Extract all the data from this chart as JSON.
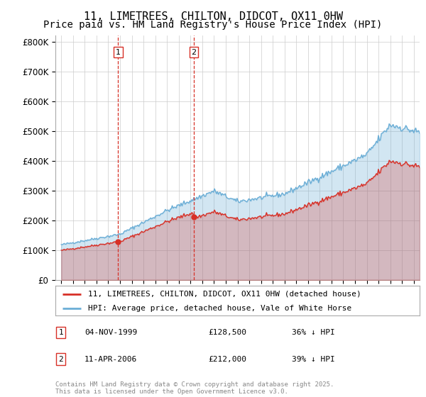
{
  "title": "11, LIMETREES, CHILTON, DIDCOT, OX11 0HW",
  "subtitle": "Price paid vs. HM Land Registry's House Price Index (HPI)",
  "legend_line1": "11, LIMETREES, CHILTON, DIDCOT, OX11 0HW (detached house)",
  "legend_line2": "HPI: Average price, detached house, Vale of White Horse",
  "table_rows": [
    {
      "num": "1",
      "date": "04-NOV-1999",
      "price": "£128,500",
      "change": "36% ↓ HPI"
    },
    {
      "num": "2",
      "date": "11-APR-2006",
      "price": "£212,000",
      "change": "39% ↓ HPI"
    }
  ],
  "footer": "Contains HM Land Registry data © Crown copyright and database right 2025.\nThis data is licensed under the Open Government Licence v3.0.",
  "sale1_date": 1999.84,
  "sale1_price": 128500,
  "sale2_date": 2006.28,
  "sale2_price": 212000,
  "hpi_color": "#6baed6",
  "hpi_fill_alpha": 0.3,
  "price_color": "#d73027",
  "price_fill_alpha": 0.25,
  "dashed_color": "#d73027",
  "background_color": "#ffffff",
  "plot_bg_color": "#ffffff",
  "grid_color": "#cccccc",
  "ylim": [
    0,
    820000
  ],
  "yticks": [
    0,
    100000,
    200000,
    300000,
    400000,
    500000,
    600000,
    700000,
    800000
  ],
  "ytick_labels": [
    "£0",
    "£100K",
    "£200K",
    "£300K",
    "£400K",
    "£500K",
    "£600K",
    "£700K",
    "£800K"
  ],
  "xlim": [
    1994.5,
    2025.5
  ],
  "xticks": [
    1995,
    1996,
    1997,
    1998,
    1999,
    2000,
    2001,
    2002,
    2003,
    2004,
    2005,
    2006,
    2007,
    2008,
    2009,
    2010,
    2011,
    2012,
    2013,
    2014,
    2015,
    2016,
    2017,
    2018,
    2019,
    2020,
    2021,
    2022,
    2023,
    2024,
    2025
  ],
  "title_fontsize": 11,
  "subtitle_fontsize": 10,
  "axis_fontsize": 8.5,
  "legend_fontsize": 8,
  "table_fontsize": 8,
  "footer_fontsize": 6.5
}
